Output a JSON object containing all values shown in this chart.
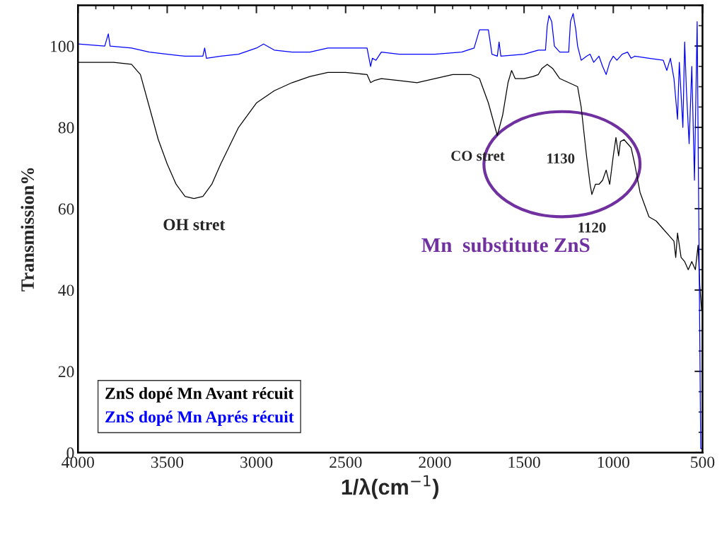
{
  "chart_data": {
    "type": "line",
    "xlabel": "1/λ(cm$^{−1}$)",
    "ylabel": "Transmission%",
    "xlim": [
      4000,
      500
    ],
    "ylim": [
      0,
      110
    ],
    "xticks": [
      4000,
      3500,
      3000,
      2500,
      2000,
      1500,
      1000,
      500
    ],
    "yticks": [
      0,
      20,
      40,
      60,
      80,
      100
    ],
    "grid": false,
    "legend": "bottom left",
    "series": [
      {
        "name": "ZnS dopé Mn Avant récuit",
        "color": "#000000",
        "x": [
          4000,
          3800,
          3700,
          3650,
          3600,
          3550,
          3500,
          3450,
          3400,
          3350,
          3300,
          3250,
          3200,
          3100,
          3000,
          2900,
          2800,
          2700,
          2600,
          2500,
          2380,
          2360,
          2340,
          2300,
          2200,
          2100,
          2000,
          1900,
          1800,
          1750,
          1700,
          1650,
          1620,
          1590,
          1570,
          1550,
          1500,
          1450,
          1420,
          1400,
          1370,
          1340,
          1300,
          1250,
          1200,
          1180,
          1150,
          1130,
          1120,
          1100,
          1080,
          1060,
          1040,
          1020,
          1000,
          985,
          970,
          960,
          940,
          900,
          880,
          850,
          800,
          760,
          720,
          680,
          660,
          650,
          640,
          620,
          600,
          580,
          560,
          540,
          525,
          515,
          505
        ],
        "values": [
          96,
          96,
          95.5,
          93,
          85,
          77,
          71,
          66,
          63,
          62.5,
          63,
          66,
          71,
          80,
          86,
          89,
          91,
          92.5,
          93.5,
          93.5,
          93,
          91,
          91.5,
          92,
          91.5,
          91,
          92,
          93,
          93,
          92,
          86,
          78,
          83,
          91,
          94,
          92,
          92,
          92.5,
          93,
          94.5,
          95.5,
          94.5,
          92,
          91,
          90,
          85,
          73,
          66,
          63.5,
          66,
          66,
          67,
          69.5,
          66,
          73,
          77.5,
          73,
          76.5,
          77,
          75,
          71,
          64,
          58,
          57,
          55,
          53,
          52,
          48,
          54,
          48,
          47,
          45,
          47,
          45,
          51,
          41,
          35
        ]
      },
      {
        "name": "ZnS dopé Mn Aprés récuit",
        "color": "#0000ff",
        "x": [
          4000,
          3850,
          3830,
          3820,
          3700,
          3600,
          3500,
          3400,
          3300,
          3290,
          3280,
          3200,
          3100,
          3000,
          2960,
          2900,
          2800,
          2700,
          2600,
          2500,
          2380,
          2360,
          2350,
          2330,
          2300,
          2200,
          2000,
          1850,
          1780,
          1750,
          1740,
          1710,
          1700,
          1680,
          1650,
          1640,
          1630,
          1500,
          1420,
          1380,
          1370,
          1360,
          1345,
          1330,
          1300,
          1250,
          1240,
          1225,
          1210,
          1200,
          1180,
          1150,
          1130,
          1110,
          1080,
          1060,
          1040,
          1020,
          1000,
          980,
          950,
          920,
          900,
          880,
          800,
          720,
          700,
          680,
          660,
          640,
          630,
          610,
          600,
          590,
          575,
          560,
          545,
          530,
          520,
          510,
          505,
          500
        ],
        "values": [
          100.5,
          100,
          103,
          100,
          99.5,
          98.5,
          98,
          97.5,
          97.5,
          99.5,
          97,
          97.5,
          98,
          99.5,
          100.5,
          99,
          98.5,
          98.5,
          99.5,
          99.5,
          99.5,
          95,
          97,
          96.5,
          98.5,
          98,
          98,
          98.5,
          99.5,
          104,
          null,
          null,
          104,
          98,
          97.5,
          101,
          97.5,
          98,
          99,
          99,
          105,
          107.5,
          106,
          100,
          98.5,
          98.5,
          106,
          108,
          104,
          100,
          96.5,
          97.5,
          98,
          96,
          97.5,
          95,
          93,
          96,
          97.5,
          96.5,
          98,
          98.5,
          97,
          97.5,
          97,
          96.5,
          94,
          97,
          92,
          82,
          96,
          80,
          101,
          89,
          76,
          95,
          67,
          106,
          null,
          1,
          null,
          1
        ]
      }
    ],
    "annotations": [
      {
        "text": "OH stret",
        "x": 3350,
        "y": 62.5
      },
      {
        "text": "CO stret",
        "x": 1650,
        "y": 78
      },
      {
        "text": "1130",
        "x": 1130,
        "y": 66
      },
      {
        "text": "1120",
        "x": 1120,
        "y": 63.5
      },
      "Mn  substitute ZnS"
    ]
  }
}
